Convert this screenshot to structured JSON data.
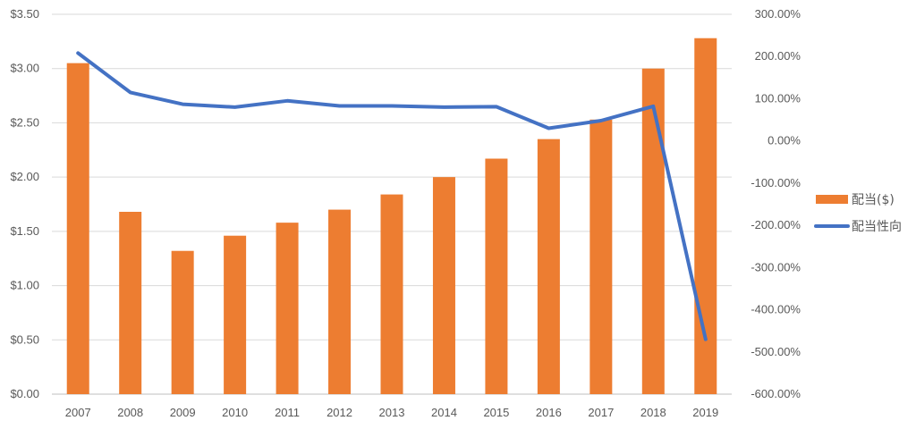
{
  "chart_data": {
    "type": "bar",
    "categories": [
      "2007",
      "2008",
      "2009",
      "2010",
      "2011",
      "2012",
      "2013",
      "2014",
      "2015",
      "2016",
      "2017",
      "2018",
      "2019"
    ],
    "series": [
      {
        "name": "配当($)",
        "type": "bar",
        "axis": "left",
        "color": "#ED7D31",
        "values": [
          3.05,
          1.68,
          1.32,
          1.46,
          1.58,
          1.7,
          1.84,
          2.0,
          2.17,
          2.35,
          2.53,
          3.0,
          3.28
        ]
      },
      {
        "name": "配当性向",
        "type": "line",
        "axis": "right",
        "color": "#4472C4",
        "values": [
          208,
          115,
          87,
          80,
          95,
          83,
          83,
          80,
          81,
          30,
          48,
          82,
          -470
        ]
      }
    ],
    "y_left": {
      "ylim": [
        0,
        3.5
      ],
      "tick_values": [
        0,
        0.5,
        1.0,
        1.5,
        2.0,
        2.5,
        3.0,
        3.5
      ],
      "tick_labels": [
        "$0.00",
        "$0.50",
        "$1.00",
        "$1.50",
        "$2.00",
        "$2.50",
        "$3.00",
        "$3.50"
      ]
    },
    "y_right": {
      "ylim": [
        -600,
        300
      ],
      "tick_values": [
        -600,
        -500,
        -400,
        -300,
        -200,
        -100,
        0,
        100,
        200,
        300
      ],
      "tick_labels": [
        "-600.00%",
        "-500.00%",
        "-400.00%",
        "-300.00%",
        "-200.00%",
        "-100.00%",
        "0.00%",
        "100.00%",
        "200.00%",
        "300.00%"
      ]
    },
    "grid": true,
    "legend_position": "right",
    "title": "",
    "xlabel": "",
    "ylabel": ""
  }
}
